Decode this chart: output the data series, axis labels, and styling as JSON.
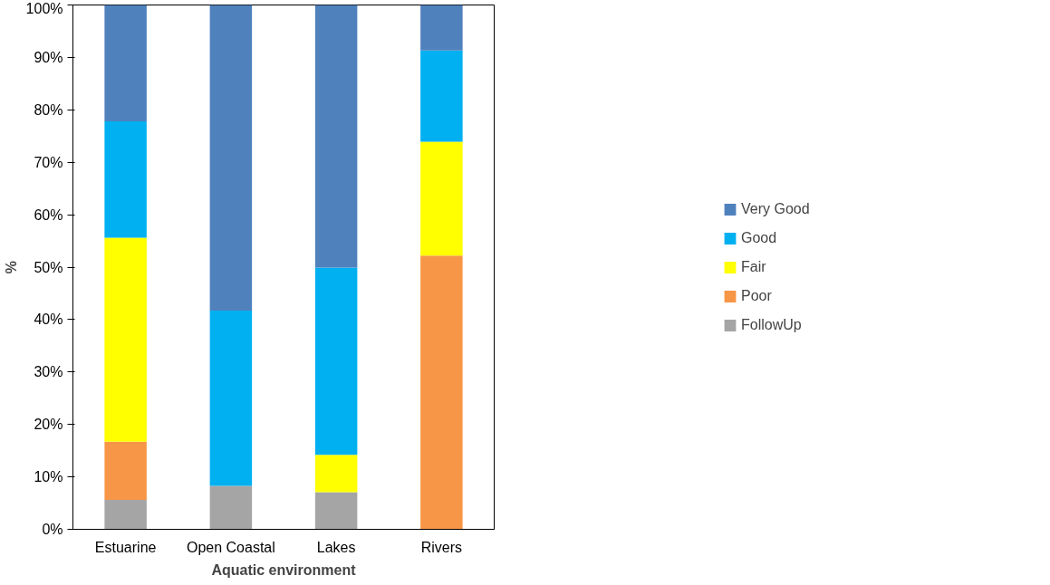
{
  "chart_data": {
    "type": "bar",
    "stacked": true,
    "xlabel": "Aquatic environment",
    "ylabel": "%",
    "categories": [
      "Estuarine",
      "Open Coastal",
      "Lakes",
      "Rivers"
    ],
    "series": [
      {
        "name": "FollowUp",
        "color": "#a5a5a5",
        "values": [
          5.6,
          8.3,
          7.1,
          0
        ]
      },
      {
        "name": "Poor",
        "color": "#f79646",
        "values": [
          11.1,
          0,
          0,
          52.2
        ]
      },
      {
        "name": "Fair",
        "color": "#ffff00",
        "values": [
          38.9,
          0,
          7.1,
          21.7
        ]
      },
      {
        "name": "Good",
        "color": "#00b0f0",
        "values": [
          22.2,
          33.4,
          35.7,
          17.4
        ]
      },
      {
        "name": "Very Good",
        "color": "#4f81bd",
        "values": [
          22.2,
          58.3,
          50.1,
          8.7
        ]
      }
    ],
    "ylim": [
      0,
      100
    ],
    "yticks": [
      {
        "value": 0,
        "label": "0%"
      },
      {
        "value": 10,
        "label": "10%"
      },
      {
        "value": 20,
        "label": "20%"
      },
      {
        "value": 30,
        "label": "30%"
      },
      {
        "value": 40,
        "label": "40%"
      },
      {
        "value": 50,
        "label": "50%"
      },
      {
        "value": 60,
        "label": "60%"
      },
      {
        "value": 70,
        "label": "70%"
      },
      {
        "value": 80,
        "label": "80%"
      },
      {
        "value": 90,
        "label": "90%"
      },
      {
        "value": 100,
        "label": "100%"
      }
    ],
    "grid": false,
    "legend": "right"
  }
}
